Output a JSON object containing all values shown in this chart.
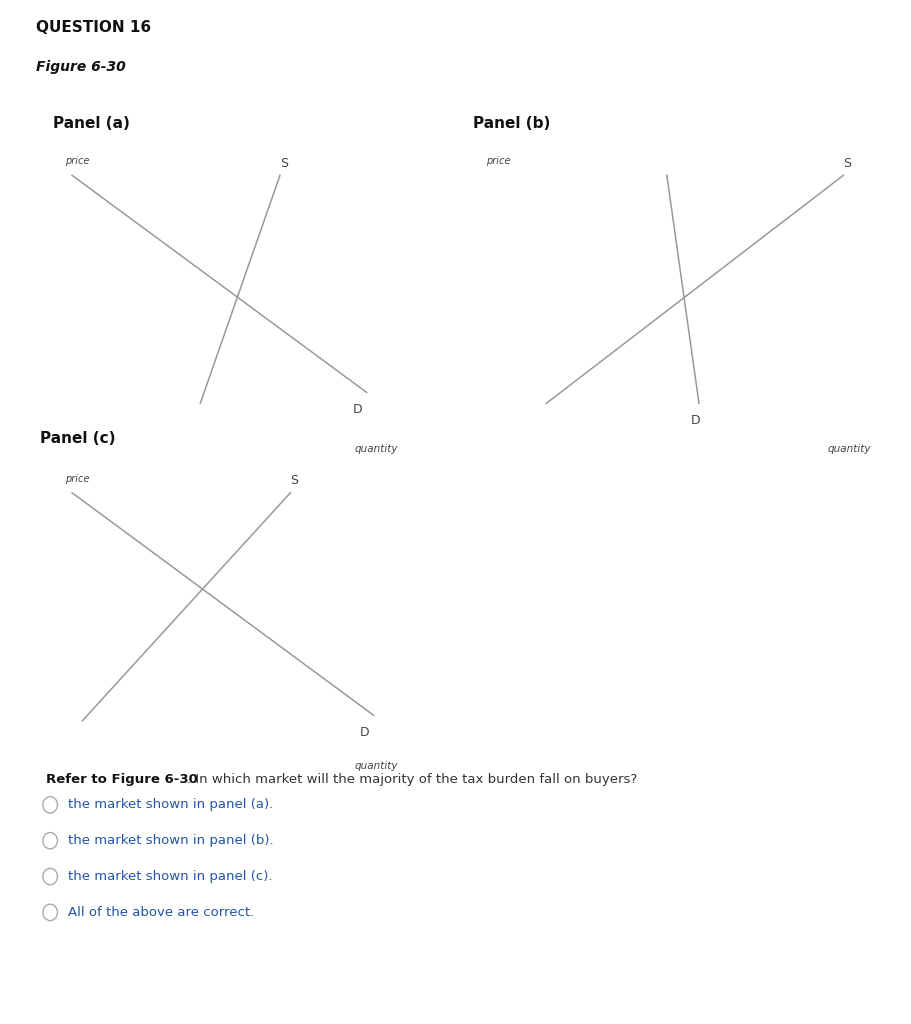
{
  "bg_color": "#ffffff",
  "question_title": "QUESTION 16",
  "figure_title": "Figure 6-30",
  "panel_a_title": "Panel (a)",
  "panel_b_title": "Panel (b)",
  "panel_c_title": "Panel (c)",
  "panel_a": {
    "D": {
      "x": [
        0.05,
        0.9
      ],
      "y": [
        0.92,
        0.12
      ]
    },
    "S": {
      "x": [
        0.42,
        0.65
      ],
      "y": [
        0.08,
        0.92
      ]
    },
    "D_label": [
      0.86,
      0.08
    ],
    "S_label": [
      0.65,
      0.94
    ]
  },
  "panel_b": {
    "D": {
      "x": [
        0.48,
        0.56
      ],
      "y": [
        0.92,
        0.08
      ]
    },
    "S": {
      "x": [
        0.18,
        0.92
      ],
      "y": [
        0.08,
        0.92
      ]
    },
    "D_label": [
      0.54,
      0.04
    ],
    "S_label": [
      0.92,
      0.94
    ]
  },
  "panel_c": {
    "D": {
      "x": [
        0.05,
        0.92
      ],
      "y": [
        0.92,
        0.1
      ]
    },
    "S": {
      "x": [
        0.08,
        0.68
      ],
      "y": [
        0.08,
        0.92
      ]
    },
    "D_label": [
      0.88,
      0.06
    ],
    "S_label": [
      0.68,
      0.94
    ]
  },
  "question_text_bold": "Refer to Figure 6-30",
  "question_text_normal": ". In which market will the majority of the tax burden fall on buyers?",
  "options": [
    "the market shown in panel (a).",
    "the market shown in panel (b).",
    "the market shown in panel (c).",
    "All of the above are correct."
  ],
  "line_color": "#999999",
  "axis_color": "#666666",
  "text_color": "#444444"
}
